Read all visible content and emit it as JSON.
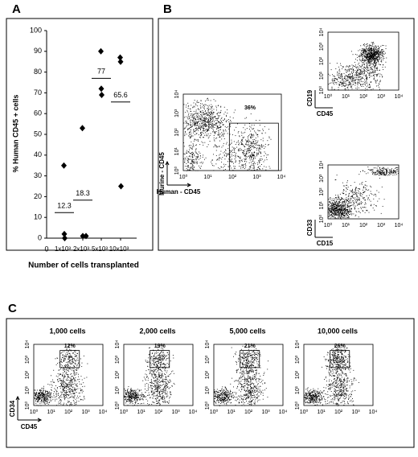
{
  "panel_labels": [
    "A",
    "B",
    "C"
  ],
  "chart_data": {
    "type": "scatter",
    "y_label": "% Human CD45 + cells",
    "x_label": "Number of cells transplanted",
    "origin_label": "0",
    "categories": [
      "1x10³",
      "2x10³",
      "5x10³",
      "10x10³"
    ],
    "points": [
      [
        35,
        2,
        0
      ],
      [
        53,
        1,
        1
      ],
      [
        90,
        72,
        69
      ],
      [
        87,
        85,
        25
      ]
    ],
    "means": [
      12.3,
      18.3,
      77,
      65.6
    ],
    "ylim": [
      0,
      100
    ],
    "yticks": [
      0,
      10,
      20,
      30,
      40,
      50,
      60,
      70,
      80,
      90,
      100
    ],
    "color": "#000000"
  },
  "flow_ticks": [
    "10⁰",
    "10¹",
    "10²",
    "10³",
    "10⁴"
  ],
  "panel_b": {
    "main": {
      "y_label": "Murine - CD45",
      "x_label": "Human - CD45",
      "gate": "36%"
    },
    "top": {
      "y_label": "CD19",
      "x_label": "CD45"
    },
    "bottom": {
      "y_label": "CD33",
      "x_label": "CD15"
    }
  },
  "panel_c": {
    "titles": [
      "1,000 cells",
      "2,000 cells",
      "5,000 cells",
      "10,000 cells"
    ],
    "gates": [
      "12%",
      "19%",
      "21%",
      "26%"
    ],
    "y_label": "CD34",
    "x_label": "CD45"
  }
}
